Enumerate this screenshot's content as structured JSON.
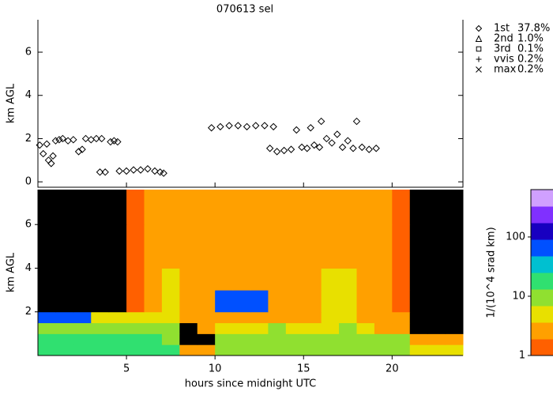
{
  "chart_data": [
    {
      "type": "scatter",
      "title": "070613 sel",
      "ylabel": "km AGL",
      "xlim": [
        0,
        24
      ],
      "xticks": [
        5,
        10,
        15,
        20
      ],
      "ylim": [
        -0.25,
        7.5
      ],
      "yticks": [
        0,
        2,
        4,
        6
      ],
      "series": [
        {
          "name": "1st",
          "share": "37.8%",
          "marker": "diamond",
          "color": "#000000",
          "x": [
            0.1,
            0.3,
            0.5,
            0.6,
            0.75,
            0.85,
            1.0,
            1.2,
            1.4,
            1.7,
            2.0,
            2.3,
            2.5,
            2.7,
            3.0,
            3.3,
            3.6,
            3.5,
            3.8,
            4.1,
            4.3,
            4.5,
            4.6,
            5.0,
            5.4,
            5.8,
            6.2,
            6.6,
            6.9,
            7.1,
            9.8,
            10.3,
            10.8,
            11.3,
            11.8,
            12.3,
            12.8,
            13.3,
            13.1,
            13.5,
            13.9,
            14.3,
            14.6,
            14.9,
            15.2,
            15.4,
            15.6,
            15.9,
            16.0,
            16.3,
            16.6,
            16.9,
            17.2,
            17.5,
            17.8,
            18.0,
            18.3,
            18.7,
            19.1
          ],
          "y": [
            1.7,
            1.3,
            1.75,
            1.0,
            0.85,
            1.2,
            1.9,
            1.95,
            2.0,
            1.9,
            1.95,
            1.4,
            1.5,
            2.0,
            1.95,
            2.0,
            2.0,
            0.45,
            0.45,
            1.85,
            1.9,
            1.85,
            0.5,
            0.5,
            0.55,
            0.55,
            0.6,
            0.5,
            0.45,
            0.4,
            2.5,
            2.55,
            2.6,
            2.6,
            2.55,
            2.6,
            2.6,
            2.55,
            1.55,
            1.4,
            1.45,
            1.5,
            2.4,
            1.6,
            1.55,
            2.5,
            1.7,
            1.6,
            2.8,
            2.0,
            1.8,
            2.2,
            1.6,
            1.9,
            1.55,
            2.8,
            1.6,
            1.5,
            1.55
          ]
        },
        {
          "name": "2nd",
          "share": "1.0%",
          "marker": "triangle",
          "color": "#000000",
          "x": [],
          "y": []
        },
        {
          "name": "3rd",
          "share": "0.1%",
          "marker": "square",
          "color": "#000000",
          "x": [],
          "y": []
        },
        {
          "name": "vvis",
          "share": "0.2%",
          "marker": "plus",
          "color": "#000000",
          "x": [],
          "y": []
        },
        {
          "name": "max",
          "share": "0.2%",
          "marker": "cross",
          "color": "#000000",
          "x": [],
          "y": []
        }
      ]
    },
    {
      "type": "heatmap",
      "xlabel": "hours since midnight UTC",
      "ylabel": "km AGL",
      "xlim": [
        0,
        24
      ],
      "xticks": [
        5,
        10,
        15,
        20
      ],
      "ylim": [
        0,
        7.6
      ],
      "yticks": [
        2,
        4,
        6
      ],
      "xbins": [
        0,
        1,
        2,
        3,
        4,
        5,
        6,
        7,
        8,
        9,
        10,
        11,
        12,
        13,
        14,
        15,
        16,
        17,
        18,
        19,
        20,
        21,
        22,
        23,
        24
      ],
      "ybins": [
        0,
        0.5,
        1,
        1.5,
        2,
        3,
        4,
        6,
        7.6
      ],
      "under_color": "#000000",
      "values": [
        [
          25,
          25,
          25,
          25,
          25,
          25,
          25,
          22,
          2,
          2,
          8,
          10,
          10,
          12,
          12,
          12,
          12,
          10,
          10,
          9,
          9,
          4,
          4,
          4
        ],
        [
          15,
          15,
          15,
          15,
          15,
          15,
          15,
          10,
          0.5,
          0.5,
          8,
          8,
          8,
          9,
          9,
          9,
          9,
          8,
          8,
          8,
          6,
          2,
          2,
          2
        ],
        [
          8,
          8,
          8,
          6,
          6,
          6,
          6,
          6,
          0.5,
          1.5,
          5,
          5,
          5,
          6,
          5,
          5,
          5,
          6,
          5,
          2,
          1.5,
          0.5,
          0.5,
          0.5
        ],
        [
          60,
          60,
          60,
          3,
          3,
          3,
          3,
          4,
          1.5,
          2,
          2,
          2,
          2,
          2,
          2,
          2,
          3,
          3,
          2,
          1.5,
          1.5,
          0.5,
          0.5,
          0.5
        ],
        [
          0.5,
          0.5,
          0.5,
          0.5,
          0.5,
          1.2,
          1.5,
          3,
          1.5,
          1.5,
          80,
          80,
          80,
          2,
          2,
          2,
          3,
          3,
          1.5,
          1.5,
          1.2,
          0.5,
          0.5,
          0.5
        ],
        [
          0.5,
          0.5,
          0.5,
          0.5,
          0.5,
          1.2,
          1.5,
          3,
          1.5,
          1.5,
          2,
          2,
          2,
          1.5,
          2,
          2,
          3,
          3,
          1.5,
          1.5,
          1.2,
          0.5,
          0.5,
          0.5
        ],
        [
          0.5,
          0.5,
          0.5,
          0.5,
          0.5,
          1.2,
          1.5,
          2.5,
          1.5,
          1.5,
          2,
          2,
          2,
          1.5,
          2,
          2,
          2.5,
          2.5,
          1.5,
          1.5,
          1.2,
          0.5,
          0.5,
          0.5
        ],
        [
          0.5,
          0.5,
          0.5,
          0.5,
          0.5,
          1.2,
          1.5,
          2.5,
          1.5,
          1.5,
          2,
          2,
          2,
          1.5,
          2,
          2,
          2.5,
          2.5,
          1.5,
          1.5,
          1.2,
          0.5,
          0.5,
          0.5
        ]
      ],
      "colorbar": {
        "label": "1/(10^4 srad km)",
        "log": true,
        "ylim": [
          1,
          630
        ],
        "yticks": [
          1,
          10,
          100
        ],
        "colors": [
          "#ff6000",
          "#ffa000",
          "#e8e000",
          "#90e030",
          "#30e070",
          "#00c0d0",
          "#0050ff",
          "#1800c0",
          "#8030ff",
          "#d0a0ff"
        ]
      }
    }
  ]
}
